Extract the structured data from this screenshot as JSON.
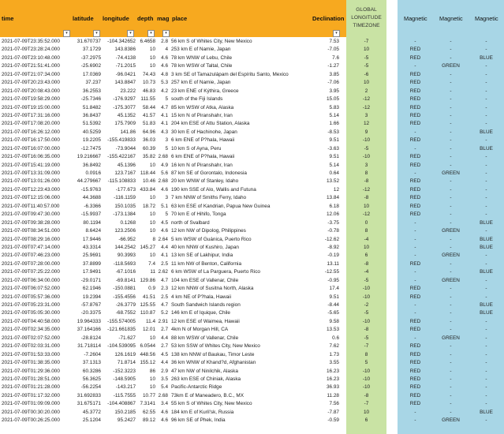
{
  "headers": {
    "time": "time",
    "latitude": "latitude",
    "longitude": "longitude",
    "depth": "depth",
    "mag": "mag",
    "place": "place",
    "declination": "Declination",
    "global_tz": "GLOBAL LONGITUDE TIMEZONE",
    "magnetic_1": "Magnetic",
    "magnetic_2": "Magnetic",
    "magnetic_3": "Magnetic",
    "filter_glyph": "▾"
  },
  "colors": {
    "orange_header": "#f7a91f",
    "green_column": "#c9e3a4",
    "blue_columns": "#a8d6e6"
  },
  "rows": [
    {
      "time": "2021-07-09T23:35:52.000",
      "lat": "31.670737",
      "lon": "-104.342652",
      "depth": "6.4658",
      "mag": "2.8",
      "place": "56 km S of Whites City, New Mexico",
      "decl": "7.53",
      "tz": "-7",
      "m1": "-",
      "m2": "-",
      "m3": "-"
    },
    {
      "time": "2021-07-09T23:28:24.000",
      "lat": "37.1729",
      "lon": "143.8386",
      "depth": "10",
      "mag": "4",
      "place": "253 km E of Namie, Japan",
      "decl": "-7.05",
      "tz": "10",
      "m1": "RED",
      "m2": "-",
      "m3": "-"
    },
    {
      "time": "2021-07-09T23:10:48.000",
      "lat": "-37.2975",
      "lon": "-74.4138",
      "depth": "10",
      "mag": "4.6",
      "place": "78 km WNW of Lebu, Chile",
      "decl": "7.6",
      "tz": "-5",
      "m1": "RED",
      "m2": "-",
      "m3": "BLUE"
    },
    {
      "time": "2021-07-09T21:51:41.000",
      "lat": "-25.6902",
      "lon": "-71.2015",
      "depth": "10",
      "mag": "4.6",
      "place": "78 km WSW of Taltal, Chile",
      "decl": "-1.27",
      "tz": "-5",
      "m1": "-",
      "m2": "GREEN",
      "m3": "-"
    },
    {
      "time": "2021-07-09T21:07:34.000",
      "lat": "17.0369",
      "lon": "-96.0421",
      "depth": "74.43",
      "mag": "4.8",
      "place": "3 km SE of Tamazulápam del Espíritu Santo, Mexico",
      "decl": "3.85",
      "tz": "-6",
      "m1": "RED",
      "m2": "-",
      "m3": "-"
    },
    {
      "time": "2021-07-09T20:23:43.000",
      "lat": "37.237",
      "lon": "143.8847",
      "depth": "10.73",
      "mag": "5.3",
      "place": "257 km E of Namie, Japan",
      "decl": "-7.06",
      "tz": "10",
      "m1": "RED",
      "m2": "-",
      "m3": "-"
    },
    {
      "time": "2021-07-09T20:08:43.000",
      "lat": "36.2553",
      "lon": "23.222",
      "depth": "46.83",
      "mag": "4.2",
      "place": "23 km ENE of Kýthira, Greece",
      "decl": "3.95",
      "tz": "2",
      "m1": "RED",
      "m2": "-",
      "m3": "-"
    },
    {
      "time": "2021-07-09T19:58:29.000",
      "lat": "-25.7346",
      "lon": "-176.9297",
      "depth": "111.55",
      "mag": "5",
      "place": "south of the Fiji Islands",
      "decl": "15.05",
      "tz": "-12",
      "m1": "RED",
      "m2": "-",
      "m3": "-"
    },
    {
      "time": "2021-07-09T19:15:00.000",
      "lat": "51.8482",
      "lon": "-175.3077",
      "depth": "58.44",
      "mag": "4.7",
      "place": "85 km WSW of Atka, Alaska",
      "decl": "5.83",
      "tz": "-12",
      "m1": "RED",
      "m2": "-",
      "m3": "-"
    },
    {
      "time": "2021-07-09T17:31:16.000",
      "lat": "36.8437",
      "lon": "45.1352",
      "depth": "41.57",
      "mag": "4.1",
      "place": "15 km N of Piranshahr, Iran",
      "decl": "5.14",
      "tz": "3",
      "m1": "RED",
      "m2": "-",
      "m3": "-"
    },
    {
      "time": "2021-07-09T17:08:20.000",
      "lat": "51.5392",
      "lon": "175.7909",
      "depth": "51.83",
      "mag": "4.1",
      "place": "204 km ESE of Attu Station, Alaska",
      "decl": "1.66",
      "tz": "12",
      "m1": "RED",
      "m2": "-",
      "m3": "-"
    },
    {
      "time": "2021-07-09T16:26:12.000",
      "lat": "40.5259",
      "lon": "141.86",
      "depth": "64.96",
      "mag": "4.3",
      "place": "30 km E of Hachinohe, Japan",
      "decl": "-8.53",
      "tz": "9",
      "m1": "-",
      "m2": "-",
      "m3": "BLUE"
    },
    {
      "time": "2021-07-09T16:17:50.000",
      "lat": "19.2205",
      "lon": "-155.419833",
      "depth": "36.03",
      "mag": "3",
      "place": "6 km ENE of P?hala, Hawaii",
      "decl": "9.51",
      "tz": "-10",
      "m1": "RED",
      "m2": "-",
      "m3": "-"
    },
    {
      "time": "2021-07-09T16:07:00.000",
      "lat": "-12.7475",
      "lon": "-73.9044",
      "depth": "60.39",
      "mag": "5",
      "place": "10 km S of Ayna, Peru",
      "decl": "-3.63",
      "tz": "-5",
      "m1": "-",
      "m2": "-",
      "m3": "BLUE"
    },
    {
      "time": "2021-07-09T16:06:35.000",
      "lat": "19.216667",
      "lon": "-155.422167",
      "depth": "35.82",
      "mag": "2.68",
      "place": "6 km ENE of P?hala, Hawaii",
      "decl": "9.51",
      "tz": "-10",
      "m1": "RED",
      "m2": "-",
      "m3": "-"
    },
    {
      "time": "2021-07-09T15:41:19.000",
      "lat": "36.8492",
      "lon": "45.1396",
      "depth": "10",
      "mag": "4.9",
      "place": "16 km N of Piranshahr, Iran",
      "decl": "5.14",
      "tz": "3",
      "m1": "RED",
      "m2": "-",
      "m3": "-"
    },
    {
      "time": "2021-07-09T13:31:09.000",
      "lat": "0.0916",
      "lon": "123.7167",
      "depth": "118.44",
      "mag": "5.6",
      "place": "87 km SE of Gorontalo, Indonesia",
      "decl": "0.64",
      "tz": "8",
      "m1": "-",
      "m2": "GREEN",
      "m3": "-"
    },
    {
      "time": "2021-07-09T13:01:26.000",
      "lat": "44.279667",
      "lon": "-115.108833",
      "depth": "10.46",
      "mag": "2.68",
      "place": "20 km WNW of Stanley, Idaho",
      "decl": "13.52",
      "tz": "-8",
      "m1": "RED",
      "m2": "-",
      "m3": "-"
    },
    {
      "time": "2021-07-09T12:23:43.000",
      "lat": "-15.9763",
      "lon": "-177.673",
      "depth": "433.84",
      "mag": "4.6",
      "place": "190 km SSE of Alo, Wallis and Futuna",
      "decl": "12",
      "tz": "-12",
      "m1": "RED",
      "m2": "-",
      "m3": "-"
    },
    {
      "time": "2021-07-09T12:15:06.000",
      "lat": "44.3688",
      "lon": "-116.1159",
      "depth": "10",
      "mag": "3",
      "place": "7 km NNW of Smiths Ferry, Idaho",
      "decl": "13.84",
      "tz": "-8",
      "m1": "RED",
      "m2": "-",
      "m3": "-"
    },
    {
      "time": "2021-07-09T11:40:57.000",
      "lat": "-6.3366",
      "lon": "150.1035",
      "depth": "18.72",
      "mag": "5.1",
      "place": "63 km ESE of Kandrian, Papua New Guinea",
      "decl": "6.18",
      "tz": "10",
      "m1": "RED",
      "m2": "-",
      "m3": "-"
    },
    {
      "time": "2021-07-09T09:47:30.000",
      "lat": "-15.9937",
      "lon": "-173.1384",
      "depth": "10",
      "mag": "5",
      "place": "70 km E of Hihifo, Tonga",
      "decl": "12.06",
      "tz": "-12",
      "m1": "RED",
      "m2": "-",
      "m3": "-"
    },
    {
      "time": "2021-07-09T09:38:28.000",
      "lat": "80.1194",
      "lon": "0.1268",
      "depth": "10",
      "mag": "4.5",
      "place": "north of Svalbard",
      "decl": "-3.75",
      "tz": "0",
      "m1": "-",
      "m2": "-",
      "m3": "BLUE"
    },
    {
      "time": "2021-07-09T08:34:51.000",
      "lat": "8.6424",
      "lon": "123.2506",
      "depth": "10",
      "mag": "4.6",
      "place": "12 km NW of Dipolog, Philippines",
      "decl": "-0.78",
      "tz": "8",
      "m1": "-",
      "m2": "GREEN",
      "m3": "-"
    },
    {
      "time": "2021-07-09T08:29:16.000",
      "lat": "17.9446",
      "lon": "-66.952",
      "depth": "8",
      "mag": "2.64",
      "place": "5 km WSW of Guánica, Puerto Rico",
      "decl": "-12.62",
      "tz": "-4",
      "m1": "-",
      "m2": "-",
      "m3": "BLUE"
    },
    {
      "time": "2021-07-09T07:47:14.000",
      "lat": "43.3314",
      "lon": "144.2542",
      "depth": "145.27",
      "mag": "4.4",
      "place": "40 km NNW of Kushiro, Japan",
      "decl": "-8.92",
      "tz": "10",
      "m1": "-",
      "m2": "-",
      "m3": "BLUE"
    },
    {
      "time": "2021-07-09T07:46:23.000",
      "lat": "25.9691",
      "lon": "90.3993",
      "depth": "10",
      "mag": "4.1",
      "place": "13 km SE of Lakhipur, India",
      "decl": "-0.19",
      "tz": "6",
      "m1": "-",
      "m2": "GREEN",
      "m3": "-"
    },
    {
      "time": "2021-07-09T07:28:00.000",
      "lat": "37.8899",
      "lon": "-118.5693",
      "depth": "7.4",
      "mag": "2.5",
      "place": "11 km NW of Benton, California",
      "decl": "13.11",
      "tz": "-8",
      "m1": "RED",
      "m2": "-",
      "m3": "-"
    },
    {
      "time": "2021-07-09T07:25:22.000",
      "lat": "17.9491",
      "lon": "-67.1016",
      "depth": "11",
      "mag": "2.62",
      "place": "6 km WSW of La Parguera, Puerto Rico",
      "decl": "-12.55",
      "tz": "-4",
      "m1": "-",
      "m2": "-",
      "m3": "BLUE"
    },
    {
      "time": "2021-07-09T06:34:00.000",
      "lat": "-29.0171",
      "lon": "-69.8141",
      "depth": "129.86",
      "mag": "4.7",
      "place": "104 km ESE of Vallenar, Chile",
      "decl": "-0.95",
      "tz": "-5",
      "m1": "-",
      "m2": "GREEN",
      "m3": "-"
    },
    {
      "time": "2021-07-09T06:07:52.000",
      "lat": "62.1946",
      "lon": "-150.0881",
      "depth": "0.9",
      "mag": "2.3",
      "place": "12 km NNW of Susitna North, Alaska",
      "decl": "17.4",
      "tz": "-10",
      "m1": "RED",
      "m2": "-",
      "m3": "-"
    },
    {
      "time": "2021-07-09T05:57:36.000",
      "lat": "19.2394",
      "lon": "-155.4556",
      "depth": "41.51",
      "mag": "2.5",
      "place": "4 km NE of P?hala, Hawaii",
      "decl": "9.51",
      "tz": "-10",
      "m1": "RED",
      "m2": "-",
      "m3": "-"
    },
    {
      "time": "2021-07-09T05:23:31.000",
      "lat": "-57.8767",
      "lon": "-26.3779",
      "depth": "125.55",
      "mag": "4.7",
      "place": "South Sandwich Islands region",
      "decl": "-8.44",
      "tz": "-2",
      "m1": "-",
      "m2": "-",
      "m3": "BLUE"
    },
    {
      "time": "2021-07-09T05:05:30.000",
      "lat": "-20.3375",
      "lon": "-68.7552",
      "depth": "110.87",
      "mag": "5.2",
      "place": "146 km E of Iquique, Chile",
      "decl": "-5.65",
      "tz": "-5",
      "m1": "-",
      "m2": "-",
      "m3": "BLUE"
    },
    {
      "time": "2021-07-09T04:40:58.000",
      "lat": "19.964333",
      "lon": "-155.574005",
      "depth": "11.4",
      "mag": "2.91",
      "place": "12 km ESE of Waimea, Hawaii",
      "decl": "9.58",
      "tz": "-10",
      "m1": "RED",
      "m2": "-",
      "m3": "-"
    },
    {
      "time": "2021-07-09T02:34:35.000",
      "lat": "37.164166",
      "lon": "-121.661835",
      "depth": "12.01",
      "mag": "2.7",
      "place": "4km N of Morgan Hill, CA",
      "decl": "13.53",
      "tz": "-8",
      "m1": "RED",
      "m2": "-",
      "m3": "-"
    },
    {
      "time": "2021-07-09T02:07:52.000",
      "lat": "-28.8124",
      "lon": "-71.627",
      "depth": "10",
      "mag": "4.4",
      "place": "88 km WSW of Vallenar, Chile",
      "decl": "0.6",
      "tz": "-5",
      "m1": "-",
      "m2": "GREEN",
      "m3": "-"
    },
    {
      "time": "2021-07-09T02:03:31.000",
      "lat": "31.718114",
      "lon": "-104.539095",
      "depth": "6.0544",
      "mag": "2.7",
      "place": "53 km SSW of Whites City, New Mexico",
      "decl": "7.62",
      "tz": "-7",
      "m1": "RED",
      "m2": "-",
      "m3": "-"
    },
    {
      "time": "2021-07-09T01:53:33.000",
      "lat": "-7.2604",
      "lon": "126.1619",
      "depth": "448.56",
      "mag": "4.5",
      "place": "138 km NNW of Baukau, Timor Leste",
      "decl": "1.73",
      "tz": "8",
      "m1": "RED",
      "m2": "-",
      "m3": "-"
    },
    {
      "time": "2021-07-09T01:38:35.000",
      "lat": "37.1313",
      "lon": "71.8714",
      "depth": "155.12",
      "mag": "4.4",
      "place": "36 km WNW of Khand?d, Afghanistan",
      "decl": "3.55",
      "tz": "5",
      "m1": "RED",
      "m2": "-",
      "m3": "-"
    },
    {
      "time": "2021-07-09T01:29:36.000",
      "lat": "60.3286",
      "lon": "-152.3223",
      "depth": "86",
      "mag": "2.9",
      "place": "47 km NW of Ninilchik, Alaska",
      "decl": "16.23",
      "tz": "-10",
      "m1": "RED",
      "m2": "-",
      "m3": "-"
    },
    {
      "time": "2021-07-09T01:28:51.000",
      "lat": "56.3625",
      "lon": "-148.5905",
      "depth": "10",
      "mag": "3.5",
      "place": "263 km ESE of Chiniak, Alaska",
      "decl": "16.23",
      "tz": "-10",
      "m1": "RED",
      "m2": "-",
      "m3": "-"
    },
    {
      "time": "2021-07-09T01:21:28.000",
      "lat": "-56.2254",
      "lon": "-143.217",
      "depth": "10",
      "mag": "5.4",
      "place": "Pacific-Antarctic Ridge",
      "decl": "36.93",
      "tz": "-10",
      "m1": "RED",
      "m2": "-",
      "m3": "-"
    },
    {
      "time": "2021-07-09T01:17:32.000",
      "lat": "31.692833",
      "lon": "-115.7555",
      "depth": "10.77",
      "mag": "2.68",
      "place": "73km E of Maneadero, B.C., MX",
      "decl": "11.28",
      "tz": "-8",
      "m1": "RED",
      "m2": "-",
      "m3": "-"
    },
    {
      "time": "2021-07-09T01:09:09.000",
      "lat": "31.675171",
      "lon": "-104.408867",
      "depth": "7.3141",
      "mag": "3.4",
      "place": "55 km S of Whites City, New Mexico",
      "decl": "7.56",
      "tz": "-7",
      "m1": "RED",
      "m2": "-",
      "m3": "-"
    },
    {
      "time": "2021-07-09T00:30:20.000",
      "lat": "45.3772",
      "lon": "150.2185",
      "depth": "62.55",
      "mag": "4.6",
      "place": "184 km E of Kuril'sk, Russia",
      "decl": "-7.87",
      "tz": "10",
      "m1": "-",
      "m2": "-",
      "m3": "BLUE"
    },
    {
      "time": "2021-07-09T00:26:25.000",
      "lat": "25.1204",
      "lon": "95.2427",
      "depth": "89.12",
      "mag": "4.6",
      "place": "96 km SE of Phek, India",
      "decl": "-0.59",
      "tz": "6",
      "m1": "-",
      "m2": "GREEN",
      "m3": "-"
    }
  ]
}
